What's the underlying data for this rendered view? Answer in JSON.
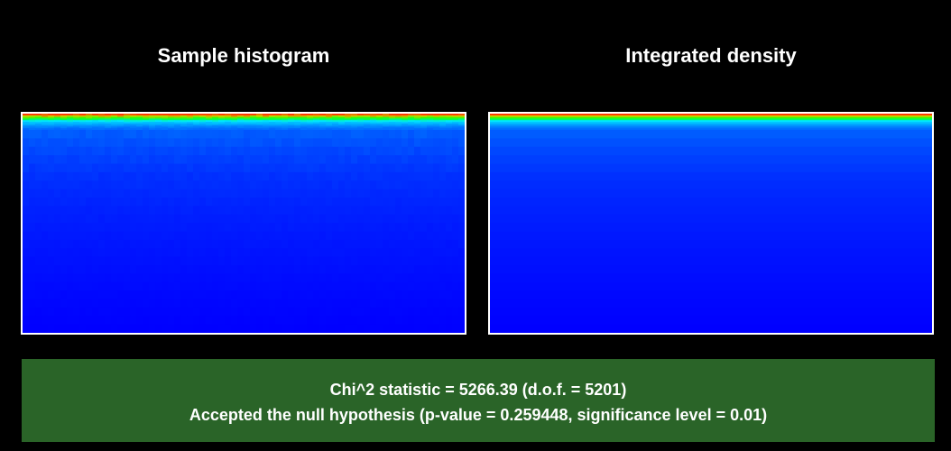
{
  "colors": {
    "background": "#000000",
    "frame": "#ffffff",
    "result_box": "#2a6428",
    "colormap": [
      "#0000ff",
      "#0030ff",
      "#0070ff",
      "#00b4ff",
      "#00e8ff",
      "#00ff60",
      "#30ff00",
      "#d0d000",
      "#ff3000"
    ]
  },
  "panels": {
    "left_title": "Sample histogram",
    "right_title": "Integrated density"
  },
  "result": {
    "line1": "Chi^2 statistic = 5266.39 (d.o.f. = 5201)",
    "line2": "Accepted the null hypothesis (p-value = 0.259448, significance level = 0.01)"
  },
  "chart_data": [
    {
      "type": "heatmap",
      "title": "Sample histogram",
      "colormap": [
        "#0000ff",
        "#0030ff",
        "#0070ff",
        "#00b4ff",
        "#00e8ff",
        "#00ff60",
        "#30ff00",
        "#d0d000",
        "#ff3000"
      ],
      "noise": true,
      "row_intensity": [
        1.0,
        0.88,
        0.76,
        0.62,
        0.5,
        0.42,
        0.36,
        0.31,
        0.27,
        0.24,
        0.21,
        0.19,
        0.17,
        0.155,
        0.14,
        0.125,
        0.115,
        0.105,
        0.095,
        0.085,
        0.078,
        0.07,
        0.063,
        0.056,
        0.05,
        0.044,
        0.038,
        0.032,
        0.026,
        0.02,
        0.015,
        0.01,
        0.005,
        0.0
      ]
    },
    {
      "type": "heatmap",
      "title": "Integrated density",
      "colormap": [
        "#0000ff",
        "#0030ff",
        "#0070ff",
        "#00b4ff",
        "#00e8ff",
        "#00ff60",
        "#30ff00",
        "#d0d000",
        "#ff3000"
      ],
      "noise": false,
      "row_intensity": [
        1.0,
        0.88,
        0.76,
        0.62,
        0.5,
        0.42,
        0.36,
        0.31,
        0.27,
        0.24,
        0.21,
        0.19,
        0.17,
        0.155,
        0.14,
        0.125,
        0.115,
        0.105,
        0.095,
        0.085,
        0.078,
        0.07,
        0.063,
        0.056,
        0.05,
        0.044,
        0.038,
        0.032,
        0.026,
        0.02,
        0.015,
        0.01,
        0.005,
        0.0
      ]
    }
  ]
}
